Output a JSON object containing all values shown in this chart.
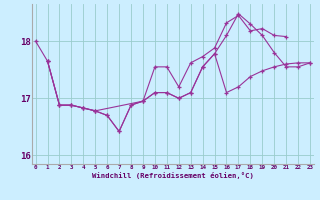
{
  "xlabel": "Windchill (Refroidissement éolien,°C)",
  "x_all": [
    0,
    1,
    2,
    3,
    4,
    5,
    6,
    7,
    8,
    9,
    10,
    11,
    12,
    13,
    14,
    15,
    16,
    17,
    18,
    19,
    20,
    21,
    22,
    23
  ],
  "line1_x": [
    0,
    1,
    2,
    3,
    4,
    5,
    6,
    7,
    8,
    9,
    10,
    11,
    12,
    13,
    14,
    15,
    16,
    17,
    18,
    19,
    20,
    21
  ],
  "line1_y": [
    18.0,
    17.65,
    16.88,
    16.88,
    16.83,
    16.78,
    16.7,
    16.42,
    16.88,
    16.95,
    17.55,
    17.55,
    17.2,
    17.62,
    17.73,
    17.88,
    18.32,
    18.45,
    18.18,
    18.22,
    18.1,
    18.08
  ],
  "line2_x": [
    1,
    2,
    3,
    4,
    5,
    6,
    7,
    8,
    9,
    10,
    11,
    12,
    13,
    14,
    15,
    16,
    17,
    18,
    19,
    20,
    21,
    22,
    23
  ],
  "line2_y": [
    17.65,
    16.88,
    16.88,
    16.83,
    16.78,
    16.7,
    16.42,
    16.88,
    16.95,
    17.1,
    17.1,
    17.0,
    17.1,
    17.55,
    17.78,
    18.1,
    18.48,
    18.3,
    18.1,
    17.8,
    17.55,
    17.55,
    17.62
  ],
  "line3_x": [
    1,
    2,
    3,
    4,
    5,
    9,
    10,
    11,
    12,
    13,
    14,
    15,
    16,
    17,
    18,
    19,
    20,
    21,
    22,
    23
  ],
  "line3_y": [
    17.65,
    16.88,
    16.88,
    16.83,
    16.78,
    16.95,
    17.1,
    17.1,
    17.0,
    17.1,
    17.55,
    17.78,
    17.1,
    17.2,
    17.38,
    17.48,
    17.55,
    17.6,
    17.62,
    17.62
  ],
  "ylim": [
    15.85,
    18.65
  ],
  "yticks": [
    16,
    17,
    18
  ],
  "xticks": [
    0,
    1,
    2,
    3,
    4,
    5,
    6,
    7,
    8,
    9,
    10,
    11,
    12,
    13,
    14,
    15,
    16,
    17,
    18,
    19,
    20,
    21,
    22,
    23
  ],
  "line_color": "#993399",
  "bg_color": "#cceeff",
  "grid_color": "#99cccc",
  "axis_color": "#660066",
  "spine_color": "#aaaaaa"
}
